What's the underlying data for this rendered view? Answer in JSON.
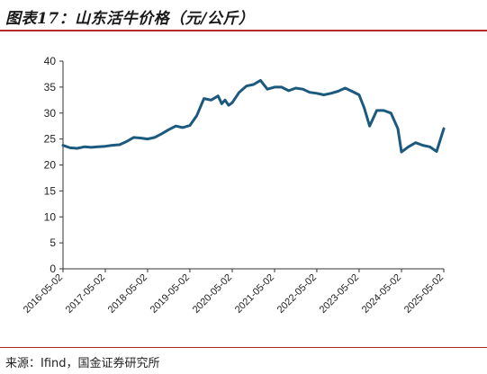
{
  "figure": {
    "title": "图表17：山东活牛价格（元/公斤）",
    "source": "来源：Ifind，国金证券研究所"
  },
  "chart_data": {
    "type": "line",
    "title": "图表17：山东活牛价格（元/公斤）",
    "xlabel": "",
    "ylabel": "",
    "ylim": [
      0,
      40
    ],
    "yticks": [
      0,
      5,
      10,
      15,
      20,
      25,
      30,
      35,
      40
    ],
    "xticks": [
      "2016-05-02",
      "2017-05-02",
      "2018-05-02",
      "2019-05-02",
      "2020-05-02",
      "2021-05-02",
      "2022-05-02",
      "2023-05-02",
      "2024-05-02",
      "2025-05-02"
    ],
    "xlim": [
      "2016-05-02",
      "2025-05-02"
    ],
    "grid": false,
    "legend": "none",
    "line_color": "#1b5a7e",
    "series": [
      {
        "x": [
          "2016-05-02",
          "2016-07-01",
          "2016-09-01",
          "2016-11-01",
          "2017-01-01",
          "2017-03-01",
          "2017-05-02",
          "2017-07-01",
          "2017-09-01",
          "2017-11-01",
          "2018-01-01",
          "2018-03-01",
          "2018-05-02",
          "2018-07-01",
          "2018-09-01",
          "2018-11-01",
          "2019-01-01",
          "2019-03-01",
          "2019-05-02",
          "2019-07-01",
          "2019-09-01",
          "2019-11-01",
          "2020-01-01",
          "2020-02-01",
          "2020-03-01",
          "2020-04-01",
          "2020-05-02",
          "2020-07-01",
          "2020-09-01",
          "2020-11-01",
          "2021-01-01",
          "2021-03-01",
          "2021-05-02",
          "2021-07-01",
          "2021-09-01",
          "2021-11-01",
          "2022-01-01",
          "2022-03-01",
          "2022-05-02",
          "2022-07-01",
          "2022-09-01",
          "2022-11-01",
          "2023-01-01",
          "2023-03-01",
          "2023-05-02",
          "2023-06-15",
          "2023-08-01",
          "2023-10-01",
          "2023-12-01",
          "2024-02-01",
          "2024-04-01",
          "2024-05-02",
          "2024-07-01",
          "2024-09-01",
          "2024-11-01",
          "2025-01-01",
          "2025-03-01",
          "2025-05-02"
        ],
        "values": [
          23.8,
          23.3,
          23.2,
          23.5,
          23.4,
          23.5,
          23.6,
          23.8,
          23.9,
          24.5,
          25.3,
          25.2,
          25.0,
          25.3,
          26.0,
          26.8,
          27.5,
          27.2,
          27.6,
          29.5,
          32.8,
          32.5,
          33.3,
          31.8,
          32.5,
          31.5,
          32.0,
          34.0,
          35.2,
          35.5,
          36.3,
          34.6,
          35.0,
          35.0,
          34.3,
          34.8,
          34.6,
          34.0,
          33.8,
          33.5,
          33.8,
          34.2,
          34.8,
          34.2,
          33.5,
          31.0,
          27.5,
          30.5,
          30.5,
          30.0,
          27.0,
          22.5,
          23.5,
          24.3,
          23.8,
          23.5,
          22.6,
          27.0
        ]
      }
    ]
  }
}
